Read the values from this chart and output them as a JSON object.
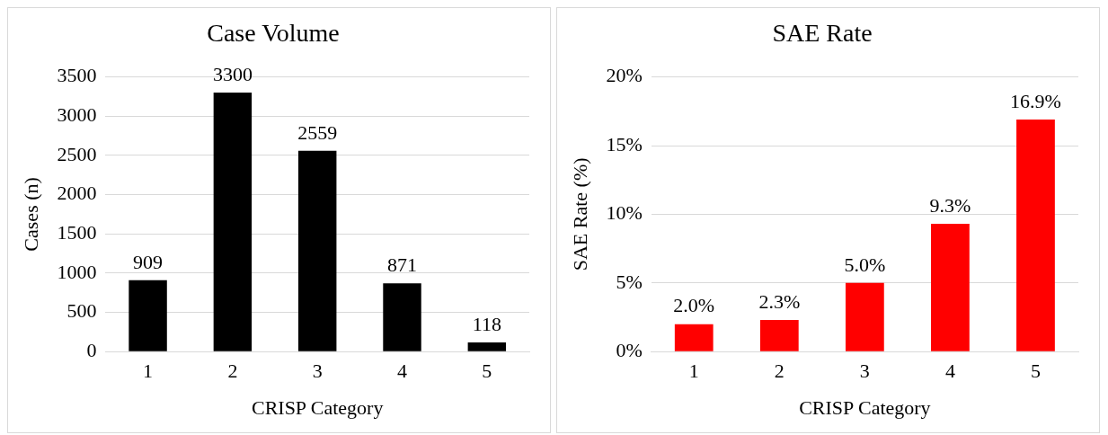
{
  "chart_data": [
    {
      "type": "bar",
      "title": "Case Volume",
      "xlabel": "CRISP Category",
      "ylabel": "Cases (n)",
      "categories": [
        "1",
        "2",
        "3",
        "4",
        "5"
      ],
      "values": [
        909,
        3300,
        2559,
        871,
        118
      ],
      "color": "#000000",
      "ylim": [
        0,
        3500
      ],
      "yticks": [
        0,
        500,
        1000,
        1500,
        2000,
        2500,
        3000,
        3500
      ],
      "grid": "y",
      "data_labels": true,
      "legend": false
    },
    {
      "type": "bar",
      "title": "SAE Rate",
      "xlabel": "CRISP Category",
      "ylabel": "SAE Rate (%)",
      "categories": [
        "1",
        "2",
        "3",
        "4",
        "5"
      ],
      "values": [
        2.0,
        2.3,
        5.0,
        9.3,
        16.9
      ],
      "value_labels": [
        "2.0%",
        "2.3%",
        "5.0%",
        "9.3%",
        "16.9%"
      ],
      "color": "#ff0000",
      "ylim": [
        0,
        20
      ],
      "yticks": [
        {
          "value": 0,
          "label": "0%"
        },
        {
          "value": 5,
          "label": "5%"
        },
        {
          "value": 10,
          "label": "10%"
        },
        {
          "value": 15,
          "label": "15%"
        },
        {
          "value": 20,
          "label": "20%"
        }
      ],
      "grid": "y",
      "legend": false
    }
  ]
}
